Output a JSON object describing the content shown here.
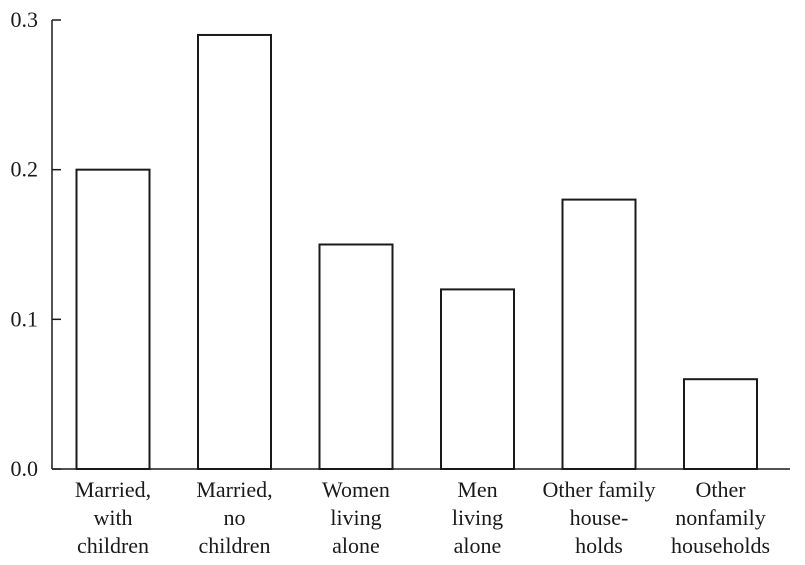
{
  "chart_data": {
    "type": "bar",
    "title": "",
    "xlabel": "",
    "ylabel": "",
    "ylim": [
      0.0,
      0.3
    ],
    "yticks": [
      "0.0",
      "0.1",
      "0.2",
      "0.3"
    ],
    "grid": false,
    "categories": [
      [
        "Married,",
        "with",
        "children"
      ],
      [
        "Married,",
        "no",
        "children"
      ],
      [
        "Women",
        "living",
        "alone"
      ],
      [
        "Men",
        "living",
        "alone"
      ],
      [
        "Other family",
        "house-",
        "holds"
      ],
      [
        "Other",
        "nonfamily",
        "households"
      ]
    ],
    "values": [
      0.2,
      0.29,
      0.15,
      0.12,
      0.18,
      0.06
    ],
    "colors": {
      "bar_fill": "#ffffff",
      "bar_stroke": "#1a1a1a",
      "text": "#1a1a1a"
    }
  }
}
